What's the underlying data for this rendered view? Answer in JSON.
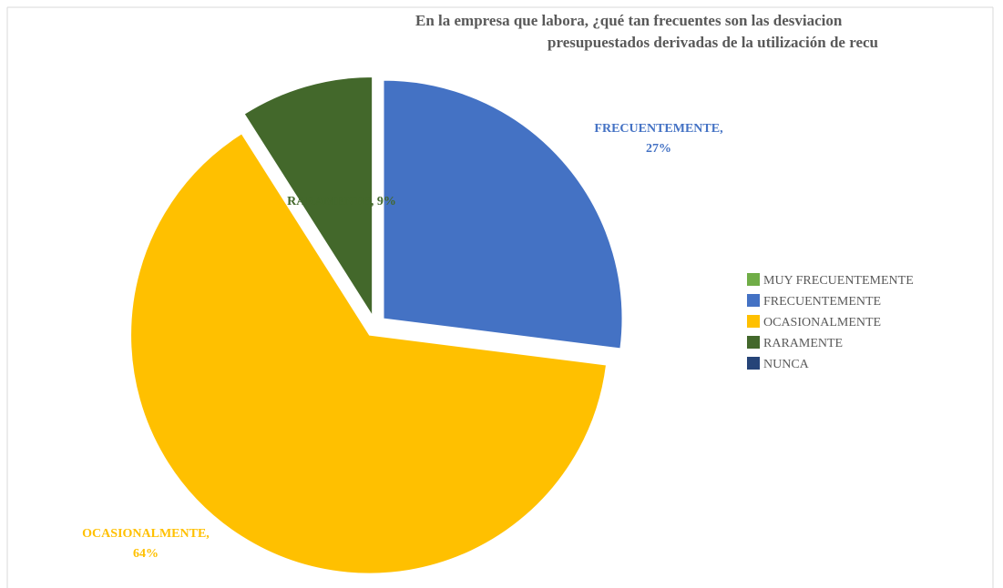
{
  "chart_data": {
    "type": "pie",
    "title": [
      "En la empresa que labora, ¿qué tan frecuentes son las desviacion",
      "presupuestados derivadas de la utilización de recu"
    ],
    "categories": [
      "MUY FRECUENTEMENTE",
      "FRECUENTEMENTE",
      "OCASIONALMENTE",
      "RARAMENTE",
      "NUNCA"
    ],
    "values": [
      0,
      27,
      64,
      9,
      0
    ],
    "value_labels": [
      null,
      "FRECUENTEMENTE, 27%",
      "OCASIONALMENTE, 64%",
      "RARAMENTE, 9%",
      null
    ],
    "colors": [
      "#70ad47",
      "#4472c4",
      "#ffc000",
      "#43682b",
      "#264478"
    ],
    "legend": "right"
  }
}
